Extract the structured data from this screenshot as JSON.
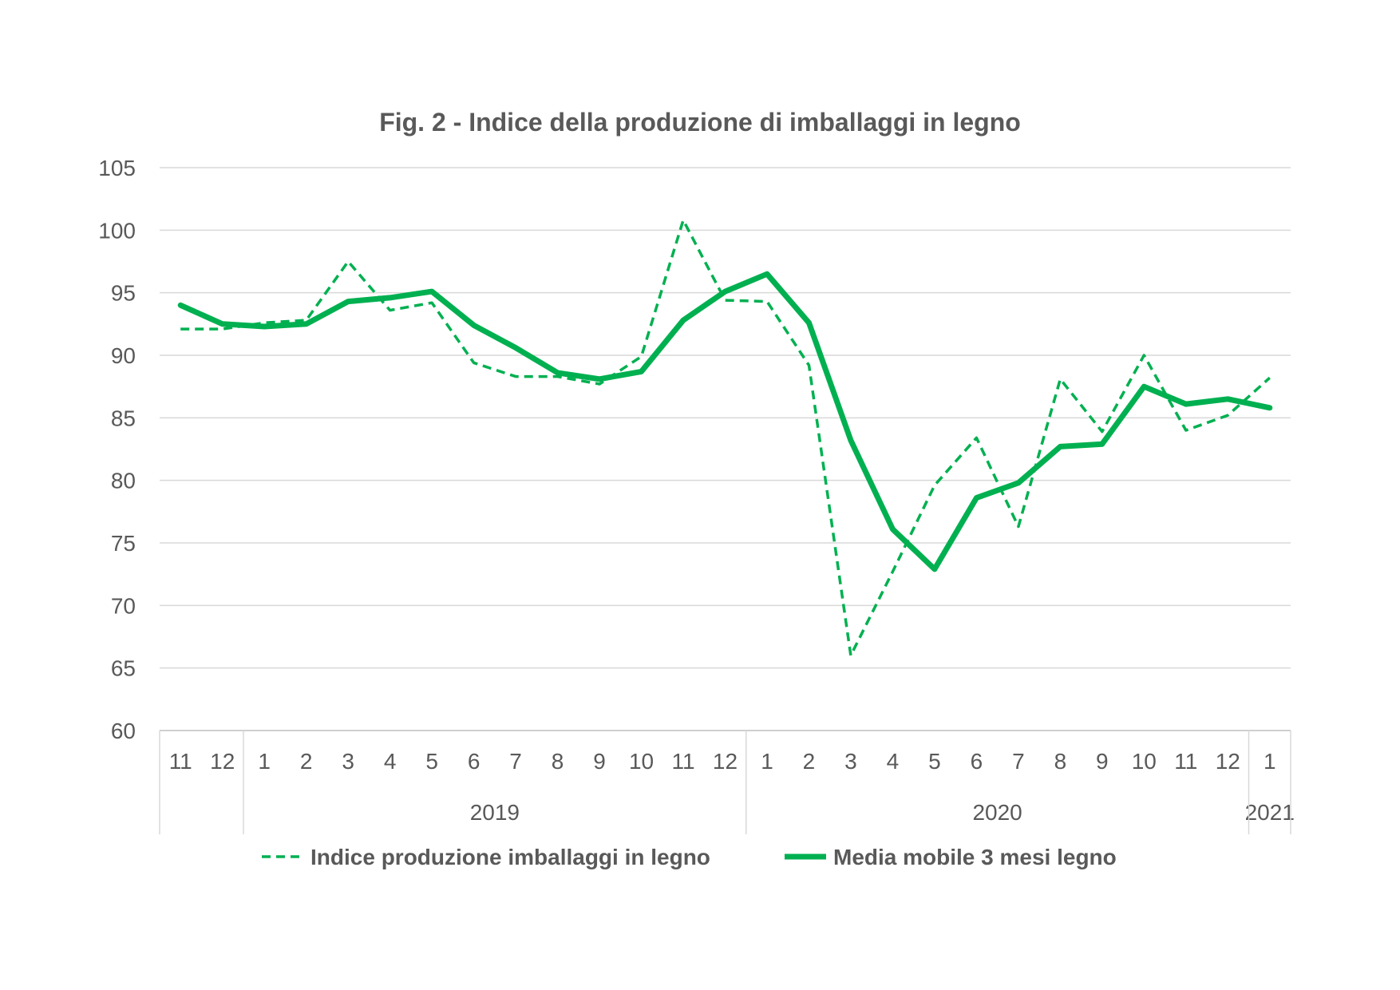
{
  "chart_data": {
    "type": "line",
    "title": "Fig. 2 - Indice della produzione di imballaggi in legno",
    "xlabel": "",
    "ylabel": "",
    "ylim": [
      60,
      105
    ],
    "yticks": [
      "60",
      "65",
      "70",
      "75",
      "80",
      "85",
      "90",
      "95",
      "100",
      "105"
    ],
    "grid": true,
    "legend_position": "bottom",
    "categories": [
      "11",
      "12",
      "1",
      "2",
      "3",
      "4",
      "5",
      "6",
      "7",
      "8",
      "9",
      "10",
      "11",
      "12",
      "1",
      "2",
      "3",
      "4",
      "5",
      "6",
      "7",
      "8",
      "9",
      "10",
      "11",
      "12",
      "1"
    ],
    "year_groups": [
      {
        "label": "",
        "count": 2
      },
      {
        "label": "2019",
        "count": 12
      },
      {
        "label": "2020",
        "count": 12
      },
      {
        "label": "2021",
        "count": 1
      }
    ],
    "series": [
      {
        "name": "Indice produzione imballaggi in legno",
        "style": "dashed",
        "color": "#00b050",
        "values": [
          92.1,
          92.1,
          92.6,
          92.8,
          97.5,
          93.6,
          94.2,
          89.4,
          88.3,
          88.3,
          87.7,
          89.9,
          100.8,
          94.4,
          94.3,
          89.2,
          66.0,
          72.7,
          79.6,
          83.4,
          76.3,
          88.1,
          83.9,
          90.0,
          84.0,
          85.2,
          88.2
        ]
      },
      {
        "name": "Media mobile 3 mesi  legno",
        "style": "solid",
        "color": "#00b050",
        "values": [
          94.0,
          92.5,
          92.3,
          92.5,
          94.3,
          94.6,
          95.1,
          92.4,
          90.6,
          88.6,
          88.1,
          88.7,
          92.8,
          95.1,
          96.5,
          92.6,
          83.2,
          76.1,
          72.9,
          78.6,
          79.8,
          82.7,
          82.9,
          87.5,
          86.1,
          86.5,
          85.8
        ]
      }
    ]
  }
}
